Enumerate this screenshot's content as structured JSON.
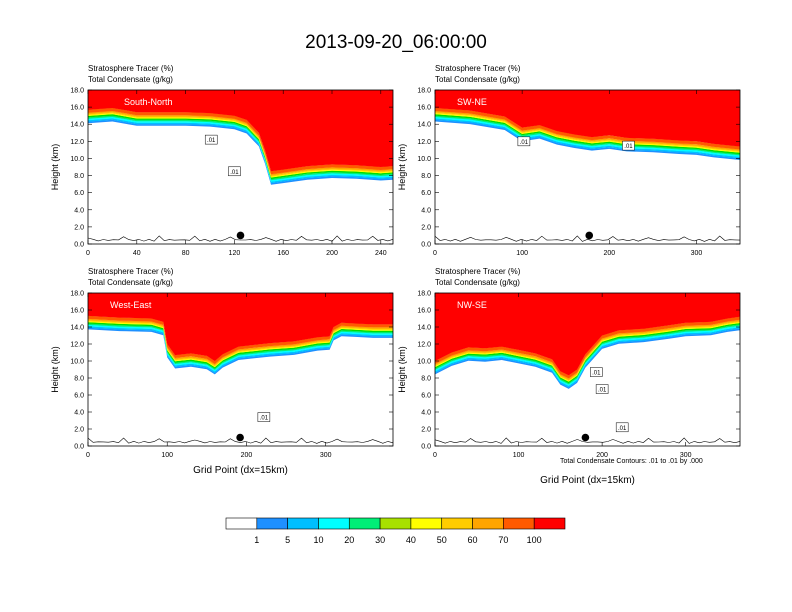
{
  "title": "2013-09-20_06:00:00",
  "panel_labels": {
    "line1": "Stratosphere Tracer   (%)",
    "line2": "Total Condensate   (g/kg)",
    "ylabel": "Height (km)",
    "xlabel": "Grid Point (dx=15km)"
  },
  "footnote": "Total Condensate Contours: .01 to .01 by .000",
  "colorbar": {
    "labels": [
      "1",
      "5",
      "10",
      "20",
      "30",
      "40",
      "50",
      "60",
      "70",
      "100"
    ],
    "colors": [
      "#ffffff",
      "#1e90ff",
      "#00bfff",
      "#00ffff",
      "#00ee77",
      "#00dd00",
      "#a8e000",
      "#ffff00",
      "#ffcc00",
      "#ffa500",
      "#ff5a00",
      "#ff0000"
    ]
  },
  "chart_data": [
    {
      "type": "heatmap",
      "name": "South-North",
      "xlim": [
        0,
        250
      ],
      "ylim": [
        0,
        18
      ],
      "xticks": [
        "0",
        "40",
        "80",
        "120",
        "160",
        "200",
        "240"
      ],
      "xtick_values": [
        0,
        40,
        80,
        120,
        160,
        200,
        240
      ],
      "yticks": [
        "0.0",
        "2.0",
        "4.0",
        "6.0",
        "8.0",
        "10.0",
        "12.0",
        "14.0",
        "16.0",
        "18.0"
      ],
      "tracer_boundary": {
        "x": [
          0,
          20,
          40,
          60,
          80,
          100,
          120,
          130,
          140,
          145,
          150,
          160,
          180,
          200,
          220,
          240,
          250
        ],
        "y": [
          15.7,
          15.9,
          15.4,
          15.4,
          15.4,
          15.3,
          15.0,
          14.5,
          13.0,
          11.0,
          8.5,
          8.7,
          9.1,
          9.3,
          9.2,
          9.0,
          9.1
        ]
      },
      "contour_labels": [
        {
          "x": 101,
          "y": 12.2,
          "text": ".01"
        },
        {
          "x": 120,
          "y": 8.5,
          "text": ".01"
        }
      ],
      "marker": {
        "x": 125,
        "y": 1.0
      }
    },
    {
      "type": "heatmap",
      "name": "SW-NE",
      "xlim": [
        0,
        350
      ],
      "ylim": [
        0,
        18
      ],
      "xticks": [
        "0",
        "100",
        "200",
        "300"
      ],
      "xtick_values": [
        0,
        100,
        200,
        300
      ],
      "yticks": [
        "0.0",
        "2.0",
        "4.0",
        "6.0",
        "8.0",
        "10.0",
        "12.0",
        "14.0",
        "16.0",
        "18.0"
      ],
      "tracer_boundary": {
        "x": [
          0,
          40,
          80,
          100,
          120,
          140,
          160,
          180,
          200,
          220,
          250,
          280,
          300,
          320,
          350
        ],
        "y": [
          15.9,
          15.6,
          14.9,
          13.6,
          13.9,
          13.2,
          12.8,
          12.5,
          12.7,
          12.4,
          12.3,
          12.1,
          12.0,
          11.7,
          11.4
        ]
      },
      "contour_labels": [
        {
          "x": 102,
          "y": 12.0,
          "text": ".01"
        },
        {
          "x": 222,
          "y": 11.5,
          "text": ".01"
        }
      ],
      "marker": {
        "x": 177,
        "y": 1.0
      }
    },
    {
      "type": "heatmap",
      "name": "West-East",
      "xlim": [
        0,
        385
      ],
      "ylim": [
        0,
        18
      ],
      "xticks": [
        "0",
        "100",
        "200",
        "300"
      ],
      "xtick_values": [
        0,
        100,
        200,
        300
      ],
      "yticks": [
        "0.0",
        "2.0",
        "4.0",
        "6.0",
        "8.0",
        "10.0",
        "12.0",
        "14.0",
        "16.0",
        "18.0"
      ],
      "tracer_boundary": {
        "x": [
          0,
          40,
          80,
          95,
          100,
          110,
          130,
          150,
          160,
          170,
          190,
          210,
          230,
          260,
          290,
          305,
          310,
          320,
          340,
          360,
          385
        ],
        "y": [
          15.3,
          15.1,
          15.0,
          14.6,
          12.0,
          10.7,
          10.9,
          10.6,
          10.0,
          10.8,
          11.7,
          11.9,
          12.1,
          12.3,
          12.8,
          12.9,
          14.0,
          14.5,
          14.4,
          14.3,
          14.3
        ]
      },
      "contour_labels": [
        {
          "x": 222,
          "y": 3.4,
          "text": ".01"
        }
      ],
      "marker": {
        "x": 192,
        "y": 1.0
      }
    },
    {
      "type": "heatmap",
      "name": "NW-SE",
      "xlim": [
        0,
        365
      ],
      "ylim": [
        0,
        18
      ],
      "xticks": [
        "0",
        "100",
        "200",
        "300"
      ],
      "xtick_values": [
        0,
        100,
        200,
        300
      ],
      "yticks": [
        "0.0",
        "2.0",
        "4.0",
        "6.0",
        "8.0",
        "10.0",
        "12.0",
        "14.0",
        "16.0",
        "18.0"
      ],
      "tracer_boundary": {
        "x": [
          0,
          20,
          40,
          60,
          80,
          100,
          120,
          140,
          150,
          160,
          170,
          180,
          200,
          220,
          250,
          280,
          300,
          330,
          350,
          365
        ],
        "y": [
          10.0,
          11.0,
          11.6,
          11.5,
          11.7,
          11.3,
          10.9,
          10.2,
          8.8,
          8.3,
          9.0,
          10.8,
          13.0,
          13.6,
          13.8,
          14.2,
          14.5,
          14.6,
          15.0,
          15.2
        ]
      },
      "contour_labels": [
        {
          "x": 193,
          "y": 8.7,
          "text": ".01"
        },
        {
          "x": 200,
          "y": 6.7,
          "text": ".01"
        },
        {
          "x": 224,
          "y": 2.2,
          "text": ".01"
        }
      ],
      "marker": {
        "x": 180,
        "y": 1.0
      }
    }
  ]
}
